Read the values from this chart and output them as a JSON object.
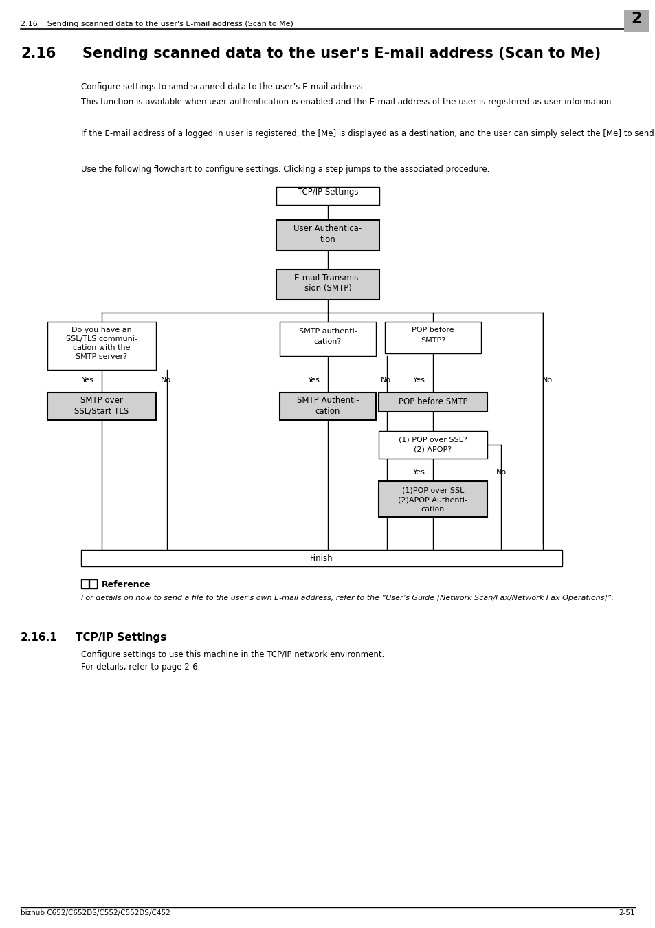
{
  "page_bg": "#ffffff",
  "header_text": "2.16    Sending scanned data to the user's E-mail address (Scan to Me)",
  "header_number": "2",
  "header_number_bg": "#aaaaaa",
  "title_num": "2.16",
  "title_text": "Sending scanned data to the user's E-mail address (Scan to Me)",
  "para1": "Configure settings to send scanned data to the user’s E-mail address.",
  "para2": "This function is available when user authentication is enabled and the E-mail address of the user is registered as user information.",
  "para3": "If the E-mail address of a logged in user is registered, the [Me] is displayed as a destination, and the user can simply select the [Me] to send the data to the user’s own E-mail address.",
  "para4": "Use the following flowchart to configure settings. Clicking a step jumps to the associated procedure.",
  "footer_left": "bizhub C652/C652DS/C552/C552DS/C452",
  "footer_right": "2-51",
  "section_num": "2.16.1",
  "section_title": "TCP/IP Settings",
  "section_para1": "Configure settings to use this machine in the TCP/IP network environment.",
  "section_para2": "For details, refer to page 2-6.",
  "ref_title": "Reference",
  "ref_text": "For details on how to send a file to the user’s own E-mail address, refer to the “User’s Guide [Network Scan/Fax/Network Fax Operations]”."
}
